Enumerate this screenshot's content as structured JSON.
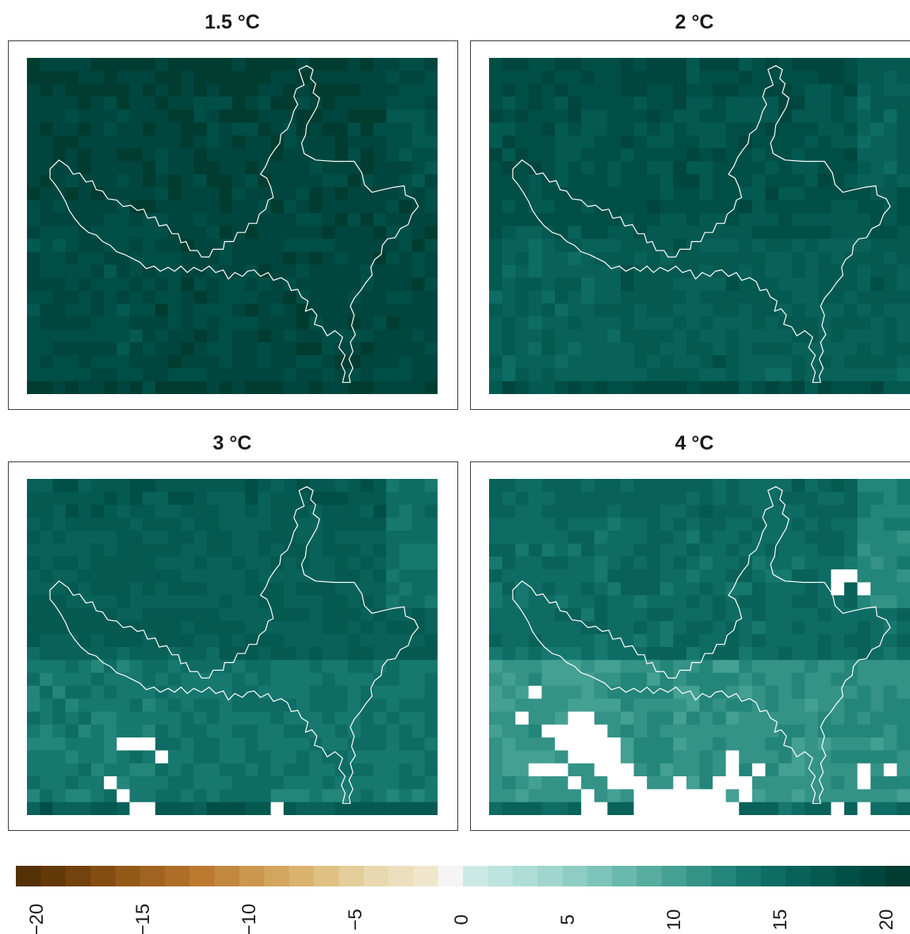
{
  "panels": [
    {
      "id": "p15",
      "title": "1.5 °C",
      "extreme_cells": []
    },
    {
      "id": "p2",
      "title": "2 °C",
      "extreme_cells": []
    },
    {
      "id": "p3",
      "title": "3 °C",
      "extreme_cells": [
        [
          20,
          7
        ],
        [
          20,
          8
        ],
        [
          20,
          9
        ],
        [
          21,
          10
        ],
        [
          23,
          6
        ],
        [
          24,
          7
        ],
        [
          25,
          8
        ],
        [
          25,
          9
        ],
        [
          25,
          19
        ]
      ]
    },
    {
      "id": "p4",
      "title": "4 °C",
      "extreme_cells": [
        [
          7,
          26
        ],
        [
          7,
          27
        ],
        [
          8,
          26
        ],
        [
          8,
          28
        ],
        [
          16,
          3
        ],
        [
          18,
          2
        ],
        [
          18,
          6
        ],
        [
          18,
          7
        ],
        [
          19,
          4
        ],
        [
          19,
          5
        ],
        [
          19,
          6
        ],
        [
          19,
          7
        ],
        [
          19,
          8
        ],
        [
          20,
          5
        ],
        [
          20,
          6
        ],
        [
          20,
          7
        ],
        [
          20,
          8
        ],
        [
          20,
          9
        ],
        [
          21,
          6
        ],
        [
          21,
          7
        ],
        [
          21,
          8
        ],
        [
          21,
          9
        ],
        [
          21,
          18
        ],
        [
          22,
          3
        ],
        [
          22,
          4
        ],
        [
          22,
          5
        ],
        [
          22,
          8
        ],
        [
          22,
          9
        ],
        [
          22,
          10
        ],
        [
          22,
          18
        ],
        [
          22,
          20
        ],
        [
          22,
          28
        ],
        [
          22,
          30
        ],
        [
          23,
          6
        ],
        [
          23,
          9
        ],
        [
          23,
          10
        ],
        [
          23,
          11
        ],
        [
          23,
          14
        ],
        [
          23,
          17
        ],
        [
          23,
          18
        ],
        [
          23,
          19
        ],
        [
          23,
          28
        ],
        [
          24,
          7
        ],
        [
          24,
          11
        ],
        [
          24,
          12
        ],
        [
          24,
          13
        ],
        [
          24,
          14
        ],
        [
          24,
          15
        ],
        [
          24,
          16
        ],
        [
          24,
          17
        ],
        [
          24,
          19
        ],
        [
          25,
          7
        ],
        [
          25,
          8
        ],
        [
          25,
          11
        ],
        [
          25,
          12
        ],
        [
          25,
          13
        ],
        [
          25,
          14
        ],
        [
          25,
          15
        ],
        [
          25,
          16
        ],
        [
          25,
          17
        ],
        [
          25,
          18
        ],
        [
          25,
          26
        ],
        [
          25,
          28
        ]
      ]
    }
  ],
  "colorbar": {
    "ticks": [
      "−20",
      "−15",
      "−10",
      "−5",
      "0",
      "5",
      "10",
      "15",
      "20"
    ],
    "vmin": -21,
    "vmax": 21,
    "colors": [
      "#543005",
      "#643909",
      "#73420d",
      "#834c11",
      "#935918",
      "#a16420",
      "#ae6e27",
      "#bb7a30",
      "#c3883f",
      "#cb974e",
      "#d3a55d",
      "#dab36e",
      "#dfc184",
      "#e3cd9a",
      "#e8d8b0",
      "#ecdfbe",
      "#f0e6cc",
      "#f5f5f5",
      "#cbeae5",
      "#bde4de",
      "#afded7",
      "#a1d6cf",
      "#8fcdc4",
      "#7cc4b9",
      "#6ab9ad",
      "#56ad9f",
      "#43a092",
      "#349286",
      "#24857a",
      "#17786f",
      "#0f6c64",
      "#09625a",
      "#045951",
      "#004f47",
      "#00463e",
      "#003c30"
    ],
    "map_colors": [
      "#003c30",
      "#00463e",
      "#004f47",
      "#045951",
      "#09625a",
      "#0f6c64",
      "#17786f",
      "#24857a",
      "#349286",
      "#43a092",
      "#56ad9f",
      "#6ab9ad"
    ],
    "extreme_color": "#ffffff"
  },
  "region_outline_color": "#ffffff"
}
